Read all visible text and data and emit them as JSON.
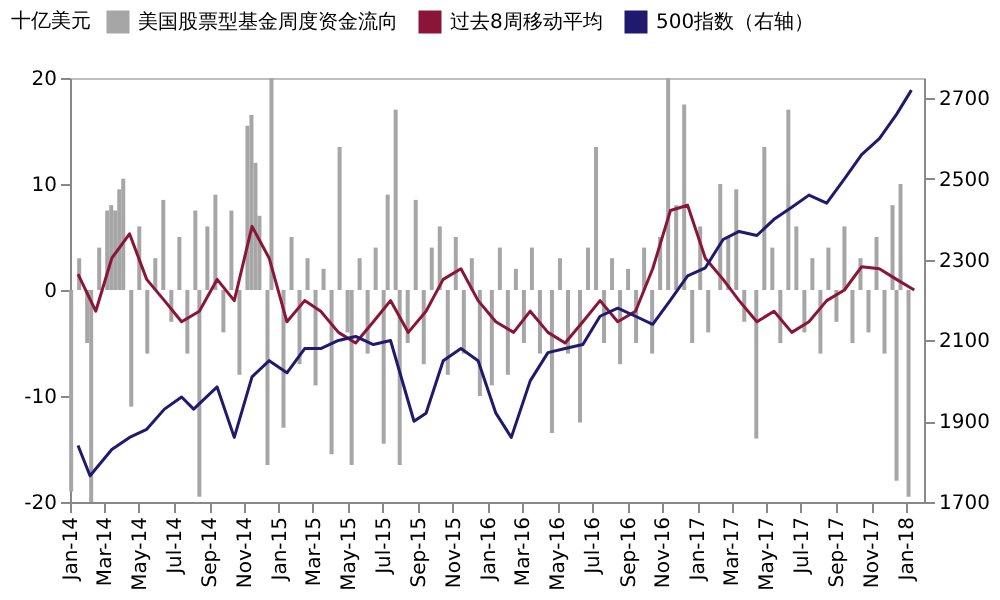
{
  "chart_data": {
    "type": "bar",
    "ylabel": "十亿美元",
    "legend": "top",
    "grid": false,
    "xlim": [
      "2014-01-01",
      "2018-02-01"
    ],
    "xticks": [
      {
        "value": "2014-01",
        "label": "Jan-14"
      },
      {
        "value": "2014-03",
        "label": "Mar-14"
      },
      {
        "value": "2014-05",
        "label": "May-14"
      },
      {
        "value": "2014-07",
        "label": "Jul-14"
      },
      {
        "value": "2014-09",
        "label": "Sep-14"
      },
      {
        "value": "2014-11",
        "label": "Nov-14"
      },
      {
        "value": "2015-01",
        "label": "Jan-15"
      },
      {
        "value": "2015-03",
        "label": "Mar-15"
      },
      {
        "value": "2015-05",
        "label": "May-15"
      },
      {
        "value": "2015-07",
        "label": "Jul-15"
      },
      {
        "value": "2015-09",
        "label": "Sep-15"
      },
      {
        "value": "2015-11",
        "label": "Nov-15"
      },
      {
        "value": "2016-01",
        "label": "Jan-16"
      },
      {
        "value": "2016-03",
        "label": "Mar-16"
      },
      {
        "value": "2016-05",
        "label": "May-16"
      },
      {
        "value": "2016-07",
        "label": "Jul-16"
      },
      {
        "value": "2016-09",
        "label": "Sep-16"
      },
      {
        "value": "2016-11",
        "label": "Nov-16"
      },
      {
        "value": "2017-01",
        "label": "Jan-17"
      },
      {
        "value": "2017-03",
        "label": "Mar-17"
      },
      {
        "value": "2017-05",
        "label": "May-17"
      },
      {
        "value": "2017-07",
        "label": "Jul-17"
      },
      {
        "value": "2017-09",
        "label": "Sep-17"
      },
      {
        "value": "2017-11",
        "label": "Nov-17"
      },
      {
        "value": "2018-01",
        "label": "Jan-18"
      }
    ],
    "ylim": [
      -20,
      20
    ],
    "yticks": [
      -20,
      -10,
      0,
      10,
      20
    ],
    "y2lim": [
      1700,
      2750
    ],
    "y2ticks": [
      1700,
      1900,
      2100,
      2300,
      2500,
      2700
    ],
    "series": [
      {
        "name": "美国股票型基金周度资金流向",
        "color": "#a6a6a6",
        "x": [
          "2014-01-03",
          "2014-01-17",
          "2014-01-31",
          "2014-02-07",
          "2014-02-21",
          "2014-03-07",
          "2014-03-14",
          "2014-03-21",
          "2014-03-28",
          "2014-04-04",
          "2014-04-18",
          "2014-05-02",
          "2014-05-16",
          "2014-05-30",
          "2014-06-13",
          "2014-06-27",
          "2014-07-11",
          "2014-07-25",
          "2014-08-08",
          "2014-08-15",
          "2014-08-29",
          "2014-09-12",
          "2014-09-26",
          "2014-10-10",
          "2014-10-24",
          "2014-11-07",
          "2014-11-14",
          "2014-11-21",
          "2014-11-28",
          "2014-12-12",
          "2014-12-19",
          "2015-01-09",
          "2015-01-23",
          "2015-02-06",
          "2015-02-20",
          "2015-03-06",
          "2015-03-20",
          "2015-04-03",
          "2015-04-17",
          "2015-05-01",
          "2015-05-08",
          "2015-05-22",
          "2015-06-05",
          "2015-06-19",
          "2015-07-03",
          "2015-07-10",
          "2015-07-24",
          "2015-07-31",
          "2015-08-14",
          "2015-08-28",
          "2015-09-11",
          "2015-09-25",
          "2015-10-09",
          "2015-10-23",
          "2015-11-06",
          "2015-11-20",
          "2015-12-04",
          "2015-12-18",
          "2016-01-08",
          "2016-01-22",
          "2016-02-05",
          "2016-02-19",
          "2016-03-04",
          "2016-03-18",
          "2016-04-01",
          "2016-04-22",
          "2016-05-06",
          "2016-05-20",
          "2016-06-10",
          "2016-06-24",
          "2016-07-08",
          "2016-07-22",
          "2016-08-05",
          "2016-08-19",
          "2016-09-02",
          "2016-09-16",
          "2016-09-30",
          "2016-10-14",
          "2016-10-28",
          "2016-11-11",
          "2016-11-25",
          "2016-12-09",
          "2016-12-23",
          "2017-01-06",
          "2017-01-20",
          "2017-02-10",
          "2017-02-24",
          "2017-03-10",
          "2017-03-24",
          "2017-04-14",
          "2017-04-28",
          "2017-05-12",
          "2017-05-26",
          "2017-06-09",
          "2017-06-23",
          "2017-07-07",
          "2017-07-21",
          "2017-08-04",
          "2017-08-18",
          "2017-09-01",
          "2017-09-15",
          "2017-09-29",
          "2017-10-13",
          "2017-10-27",
          "2017-11-10",
          "2017-11-24",
          "2017-12-08",
          "2017-12-15",
          "2017-12-22",
          "2018-01-05"
        ],
        "values": [
          -19,
          3,
          -5,
          -20,
          4,
          7.5,
          8,
          7.5,
          9.5,
          10.5,
          -11,
          6,
          -6,
          3,
          8.5,
          -3,
          5,
          -6,
          7.5,
          -19.5,
          6,
          9,
          -4,
          7.5,
          -8,
          15.5,
          16.5,
          12,
          7,
          -16.5,
          20,
          -13,
          5,
          -7,
          3,
          -9,
          2,
          -15.5,
          13.5,
          -4,
          -16.5,
          3,
          -6,
          4,
          -14.5,
          9,
          17,
          -16.5,
          -5,
          8.5,
          -7,
          4,
          6,
          -8,
          5,
          -6,
          3,
          -10,
          -9,
          4,
          -8,
          2,
          -5,
          4,
          -6,
          -13.5,
          3,
          -6,
          -12.5,
          4,
          13.5,
          -5,
          3,
          -7,
          2,
          -5,
          4,
          -6,
          5,
          20,
          8,
          17.5,
          -5,
          6,
          -4,
          10,
          5,
          9.5,
          -3,
          -14,
          13.5,
          4,
          -5,
          17,
          6,
          -4,
          3,
          -6,
          4,
          -3,
          6,
          -5,
          3,
          -4,
          5,
          -6,
          8,
          -18,
          10,
          -19.5
        ]
      },
      {
        "name": "过去8周移动平均",
        "type": "line",
        "color": "#8b1538",
        "x": [
          "2014-01-15",
          "2014-02-15",
          "2014-03-15",
          "2014-04-15",
          "2014-05-15",
          "2014-06-15",
          "2014-07-15",
          "2014-08-15",
          "2014-09-15",
          "2014-10-15",
          "2014-11-15",
          "2014-12-15",
          "2015-01-15",
          "2015-02-15",
          "2015-03-15",
          "2015-04-15",
          "2015-05-15",
          "2015-06-15",
          "2015-07-15",
          "2015-08-15",
          "2015-09-15",
          "2015-10-15",
          "2015-11-15",
          "2015-12-15",
          "2016-01-15",
          "2016-02-15",
          "2016-03-15",
          "2016-04-15",
          "2016-05-15",
          "2016-06-15",
          "2016-07-15",
          "2016-08-15",
          "2016-09-15",
          "2016-10-15",
          "2016-11-15",
          "2016-12-15",
          "2017-01-15",
          "2017-02-15",
          "2017-03-15",
          "2017-04-15",
          "2017-05-15",
          "2017-06-15",
          "2017-07-15",
          "2017-08-15",
          "2017-09-15",
          "2017-10-15",
          "2017-11-15",
          "2017-12-15",
          "2018-01-15"
        ],
        "values": [
          1.5,
          -2,
          3,
          5.3,
          1,
          -1,
          -3,
          -2,
          1,
          -1,
          6,
          3,
          -3,
          -1,
          -2,
          -4,
          -5,
          -3,
          -1,
          -4,
          -2,
          1,
          2,
          -1,
          -3,
          -4,
          -2,
          -4,
          -5,
          -3,
          -1,
          -3,
          -2,
          2,
          7.5,
          8,
          3,
          1,
          -1,
          -3,
          -2,
          -4,
          -3,
          -1,
          0,
          2.2,
          2,
          1,
          0
        ]
      },
      {
        "name": "500指数（右轴）",
        "type": "line",
        "axis": "y2",
        "color": "#1f1a6e",
        "x": [
          "2014-01-15",
          "2014-02-05",
          "2014-03-15",
          "2014-04-15",
          "2014-05-15",
          "2014-06-15",
          "2014-07-15",
          "2014-08-05",
          "2014-09-15",
          "2014-10-15",
          "2014-11-15",
          "2014-12-15",
          "2015-01-15",
          "2015-02-15",
          "2015-03-15",
          "2015-04-15",
          "2015-05-15",
          "2015-06-15",
          "2015-07-15",
          "2015-08-25",
          "2015-09-15",
          "2015-10-15",
          "2015-11-15",
          "2015-12-15",
          "2016-01-15",
          "2016-02-11",
          "2016-03-15",
          "2016-04-15",
          "2016-05-15",
          "2016-06-15",
          "2016-07-15",
          "2016-08-15",
          "2016-09-15",
          "2016-10-15",
          "2016-11-15",
          "2016-12-15",
          "2017-01-15",
          "2017-02-15",
          "2017-03-15",
          "2017-04-15",
          "2017-05-15",
          "2017-06-15",
          "2017-07-15",
          "2017-08-15",
          "2017-09-15",
          "2017-10-15",
          "2017-11-15",
          "2017-12-15",
          "2018-01-10"
        ],
        "values": [
          1840,
          1765,
          1830,
          1860,
          1880,
          1930,
          1960,
          1930,
          1985,
          1860,
          2010,
          2050,
          2020,
          2080,
          2080,
          2100,
          2110,
          2090,
          2100,
          1900,
          1920,
          2050,
          2080,
          2050,
          1920,
          1860,
          2000,
          2070,
          2080,
          2090,
          2160,
          2180,
          2160,
          2140,
          2200,
          2260,
          2280,
          2350,
          2370,
          2360,
          2400,
          2430,
          2460,
          2440,
          2500,
          2560,
          2600,
          2660,
          2720
        ]
      }
    ]
  }
}
